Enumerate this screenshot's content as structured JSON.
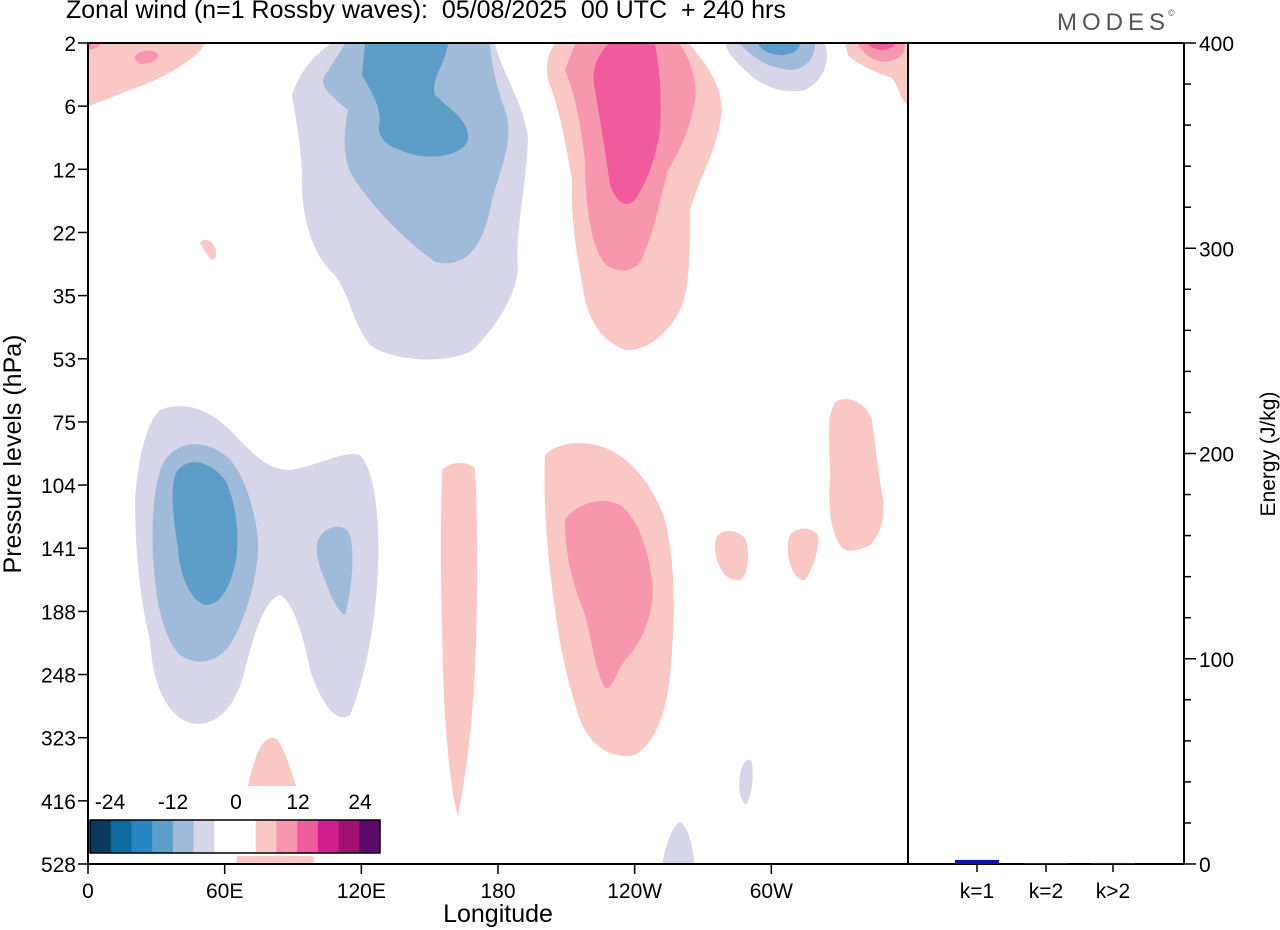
{
  "header": {
    "title": "Zonal wind (n=1 Rossby waves):  05/08/2025  00 UTC  + 240 hrs",
    "logo": "MODES",
    "logo_mark": "©"
  },
  "chart_data": [
    {
      "type": "contour",
      "xlabel": "Longitude",
      "ylabel": "Pressure levels (hPa)",
      "x_ticks": [
        "0",
        "60E",
        "120E",
        "180",
        "120W",
        "60W"
      ],
      "y_ticks": [
        "2",
        "6",
        "12",
        "22",
        "35",
        "53",
        "75",
        "104",
        "141",
        "188",
        "248",
        "323",
        "416",
        "528"
      ],
      "colorbar": {
        "labels": [
          "-24",
          "-12",
          "0",
          "12",
          "24"
        ],
        "colors": [
          "#0c3a5c",
          "#0e6a9c",
          "#2686c2",
          "#5c9ec8",
          "#a0bada",
          "#d6d6e8",
          "#ffffff",
          "#ffffff",
          "#f9c8c4",
          "#f797ae",
          "#ef5b9c",
          "#d21d8c",
          "#a0106e",
          "#5a0a68"
        ]
      },
      "regions": [
        {
          "name": "upper-negative-anomaly",
          "sign": "negative",
          "peak": -12,
          "lon_center": 145,
          "levels": "2-53 hPa"
        },
        {
          "name": "upper-positive-anomaly",
          "sign": "positive",
          "peak": 15,
          "lon_center": 240,
          "levels": "2-53 hPa"
        },
        {
          "name": "lower-negative-anomaly",
          "sign": "negative",
          "peak": -12,
          "lon_center": 40,
          "levels": "75-323 hPa"
        },
        {
          "name": "lower-positive-anomaly",
          "sign": "positive",
          "peak": 9,
          "lon_center": 235,
          "levels": "104-323 hPa"
        }
      ]
    },
    {
      "type": "bar",
      "ylabel": "Energy (J/kg)",
      "ylim": [
        0,
        400
      ],
      "y_ticks": [
        "0",
        "100",
        "200",
        "300",
        "400"
      ],
      "categories": [
        "k=1",
        "k=2",
        "k>2"
      ],
      "values": [
        2,
        0.3,
        0.5
      ],
      "bar_color": "#1010b4"
    }
  ]
}
